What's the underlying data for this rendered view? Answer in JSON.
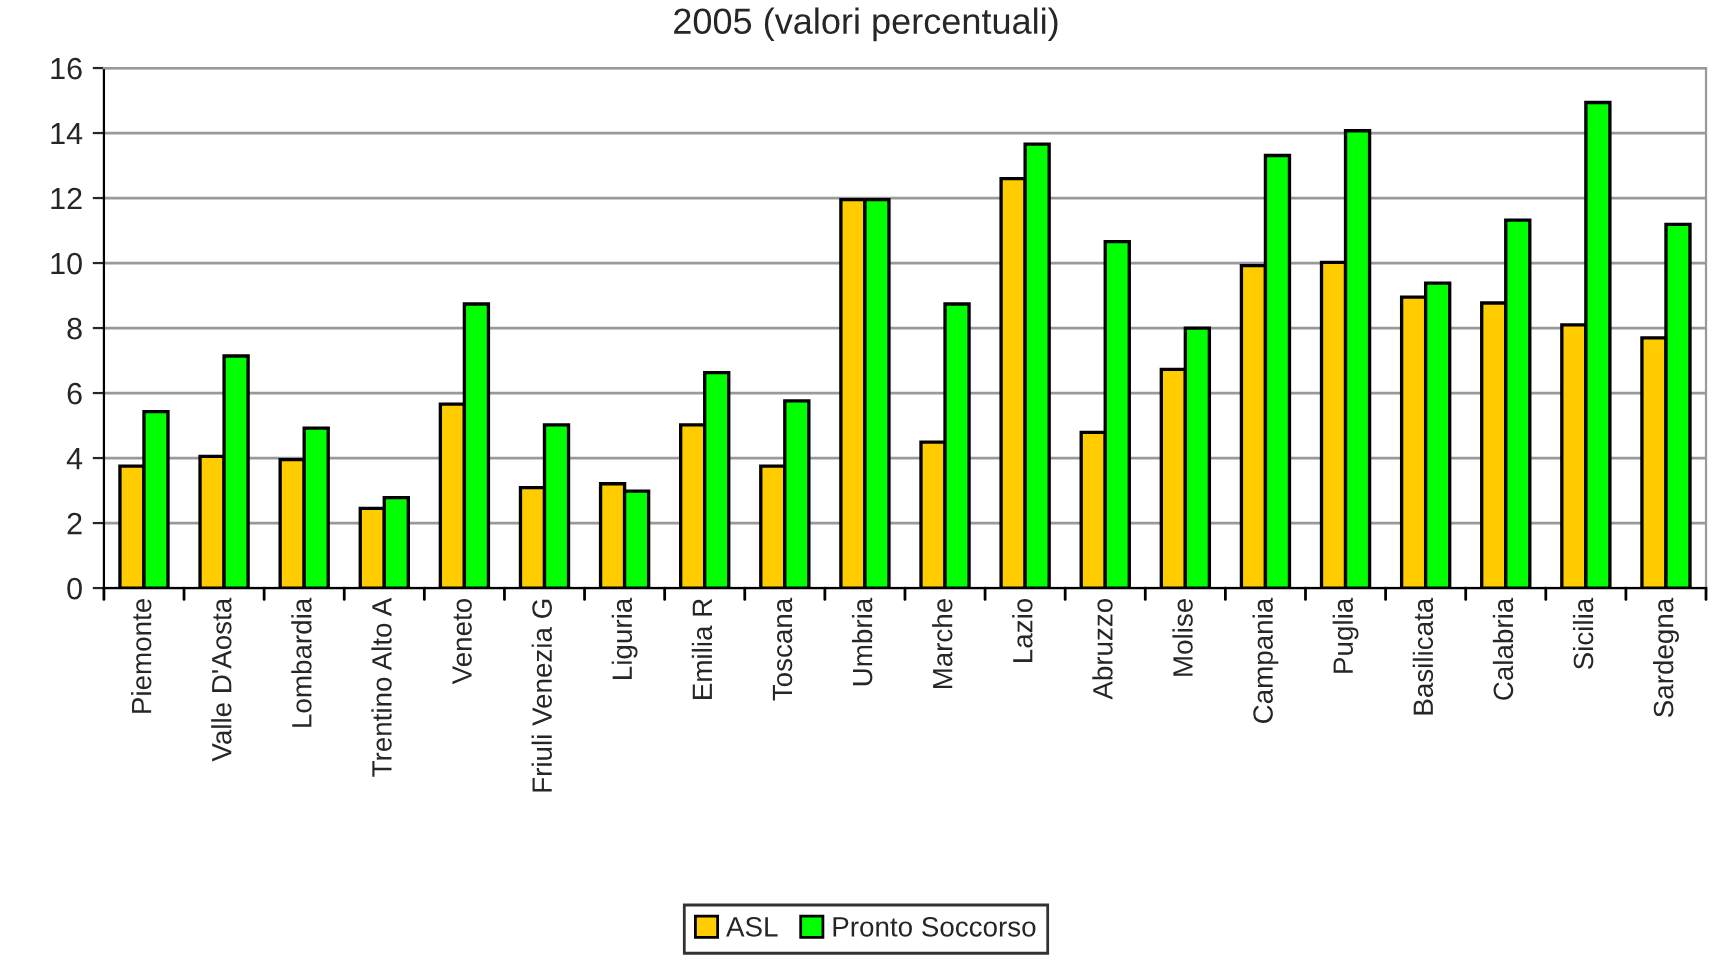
{
  "chart_data": {
    "type": "bar",
    "title": "2005 (valori percentuali)",
    "categories": [
      "Piemonte",
      "Valle D'Aosta",
      "Lombardia",
      "Trentino Alto A",
      "Veneto",
      "Friuli Venezia G",
      "Liguria",
      "Emilia R",
      "Toscana",
      "Umbria",
      "Marche",
      "Lazio",
      "Abruzzo",
      "Molise",
      "Campania",
      "Puglia",
      "Basilicata",
      "Calabria",
      "Sicilia",
      "Sardegna"
    ],
    "series": [
      {
        "name": "ASL",
        "color": "#ffcc00",
        "values": [
          3.75,
          4.05,
          3.95,
          2.45,
          5.66,
          3.09,
          3.21,
          5.02,
          3.75,
          11.95,
          4.49,
          12.6,
          4.79,
          6.73,
          9.92,
          10.02,
          8.95,
          8.77,
          8.1,
          7.7
        ]
      },
      {
        "name": "Pronto Soccorso",
        "color": "#00ff00",
        "values": [
          5.43,
          7.14,
          4.92,
          2.78,
          8.74,
          5.02,
          2.98,
          6.63,
          5.76,
          11.95,
          8.74,
          13.66,
          10.66,
          8.0,
          13.31,
          14.07,
          9.38,
          11.32,
          14.94,
          11.19
        ]
      }
    ],
    "ylim": [
      0,
      16
    ],
    "yticks": [
      0,
      2,
      4,
      6,
      8,
      10,
      12,
      14,
      16
    ],
    "grid": "y",
    "legend": "bottom"
  }
}
